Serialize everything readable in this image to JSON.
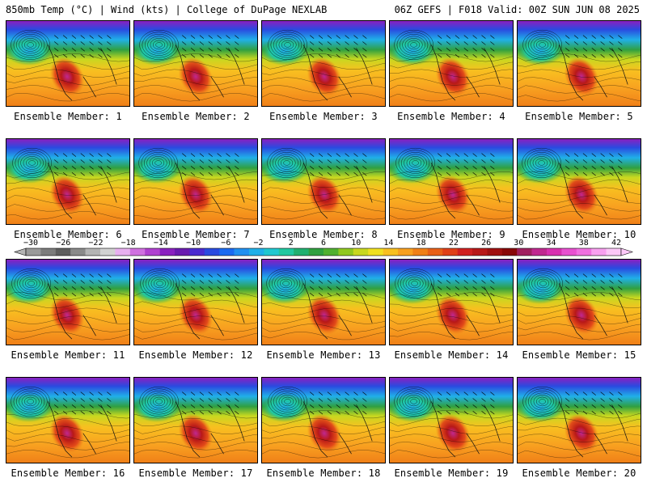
{
  "header": {
    "title": "850mb Temp (°C) | Wind (kts) | College of DuPage NEXLAB",
    "run_info": "06Z GEFS | F018 Valid: 00Z SUN JUN 08 2025"
  },
  "members": [
    "Ensemble Member: 1",
    "Ensemble Member: 2",
    "Ensemble Member: 3",
    "Ensemble Member: 4",
    "Ensemble Member: 5",
    "Ensemble Member: 6",
    "Ensemble Member: 7",
    "Ensemble Member: 8",
    "Ensemble Member: 9",
    "Ensemble Member: 10",
    "Ensemble Member: 11",
    "Ensemble Member: 12",
    "Ensemble Member: 13",
    "Ensemble Member: 14",
    "Ensemble Member: 15",
    "Ensemble Member: 16",
    "Ensemble Member: 17",
    "Ensemble Member: 18",
    "Ensemble Member: 19",
    "Ensemble Member: 20"
  ],
  "colorbar": {
    "labels": [
      "−30",
      "−26",
      "−22",
      "−18",
      "−14",
      "−10",
      "−6",
      "−2",
      "2",
      "6",
      "10",
      "14",
      "18",
      "22",
      "26",
      "30",
      "34",
      "38",
      "42"
    ],
    "colors": [
      "#9a9a9a",
      "#7c7c7c",
      "#5e5e5e",
      "#8a8a8a",
      "#b4b4b4",
      "#d2d2d2",
      "#e8b0f0",
      "#d070e0",
      "#b040d0",
      "#8a20c0",
      "#6a1ab0",
      "#4a2ad0",
      "#2a4ae0",
      "#1a6af0",
      "#2090f0",
      "#20b0e8",
      "#20c8d0",
      "#20c8a0",
      "#20b070",
      "#30a040",
      "#50b030",
      "#90c820",
      "#c8d820",
      "#f0e020",
      "#f8c020",
      "#f8a020",
      "#f08018",
      "#e86018",
      "#e04018",
      "#d02020",
      "#b81818",
      "#a01010",
      "#880808",
      "#a02060",
      "#c02890",
      "#d830b0",
      "#e850d0",
      "#f070e0",
      "#f8a0f0",
      "#fcc8f8"
    ]
  }
}
